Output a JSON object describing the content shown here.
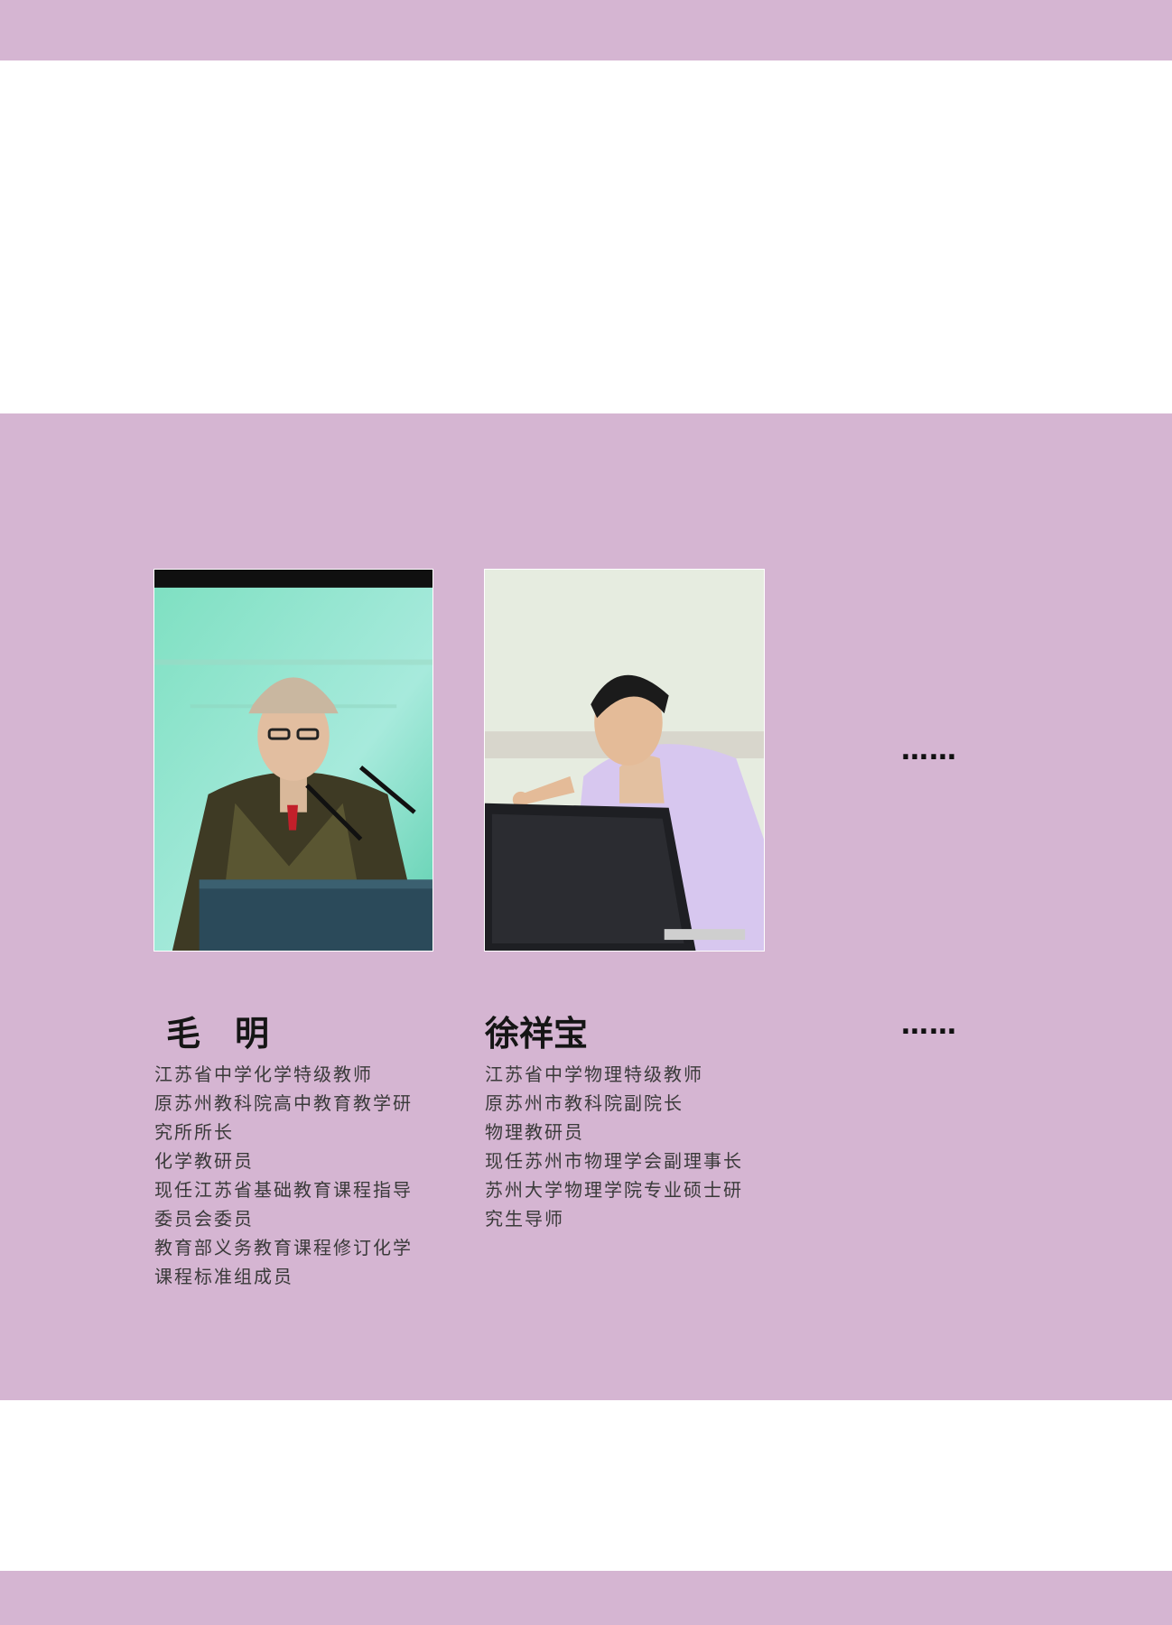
{
  "colors": {
    "band": "#d5b5d2",
    "background": "#ffffff",
    "name_text": "#151515",
    "bio_text": "#3a3a3a"
  },
  "ellipsis": "……",
  "profiles": [
    {
      "name": "毛　明",
      "photo": "portrait-man-at-podium-with-microphones",
      "bio_lines": [
        "江苏省中学化学特级教师",
        "原苏州教科院高中教育教学研",
        "究所所长",
        "化学教研员",
        "现任江苏省基础教育课程指导",
        "委员会委员",
        "教育部义务教育课程修订化学",
        "课程标准组成员"
      ]
    },
    {
      "name": "徐祥宝",
      "photo": "portrait-man-pointing-behind-laptop",
      "bio_lines": [
        "江苏省中学物理特级教师",
        "原苏州市教科院副院长",
        "物理教研员",
        "现任苏州市物理学会副理事长",
        "苏州大学物理学院专业硕士研",
        "究生导师"
      ]
    }
  ]
}
